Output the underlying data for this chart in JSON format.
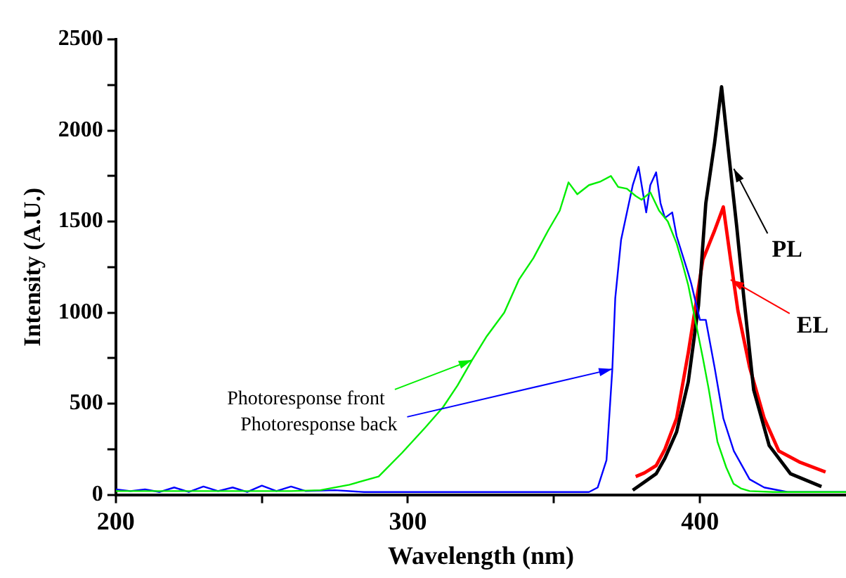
{
  "chart_data": {
    "type": "line",
    "xlabel": "Wavelength (nm)",
    "ylabel": "Intensity (A.U.)",
    "xlim": [
      200,
      450
    ],
    "xticks": [
      200,
      {
        "value": 250,
        "label": null
      },
      300,
      {
        "value": 350,
        "label": null
      },
      400
    ],
    "ylim": [
      0,
      2500
    ],
    "yticks": [
      0,
      {
        "value": 250,
        "label": null
      },
      500,
      {
        "value": 750,
        "label": null
      },
      1000,
      {
        "value": 1250,
        "label": null
      },
      1500,
      {
        "value": 1750,
        "label": null
      },
      2000,
      {
        "value": 2250,
        "label": null
      },
      2500
    ],
    "grid": false,
    "legend": false,
    "marker": "none",
    "line_style": "solid",
    "series": [
      {
        "color": "#00ee00",
        "x": [
          200,
          230,
          260,
          270,
          280,
          290,
          298,
          306,
          312,
          317,
          322,
          327,
          333,
          338,
          343,
          348,
          352,
          355,
          358,
          362,
          366,
          369.5,
          372,
          375,
          378,
          380,
          383,
          386,
          389,
          392,
          394,
          396,
          399,
          401,
          403,
          406,
          409,
          411.5,
          414,
          417,
          425,
          450
        ],
        "values": [
          20,
          20,
          20,
          25,
          55,
          100,
          230,
          370,
          480,
          600,
          740,
          870,
          1000,
          1180,
          1300,
          1450,
          1560,
          1715,
          1650,
          1700,
          1720,
          1750,
          1690,
          1680,
          1640,
          1620,
          1660,
          1560,
          1500,
          1380,
          1270,
          1150,
          910,
          750,
          580,
          290,
          150,
          60,
          35,
          20,
          15,
          15
        ]
      },
      {
        "color": "#0000ff",
        "x": [
          200,
          205,
          210,
          215,
          220,
          225,
          230,
          235,
          240,
          245,
          250,
          255,
          260,
          265,
          275,
          285,
          300,
          330,
          362,
          365,
          368,
          370,
          371,
          373,
          375,
          377,
          379,
          381.6,
          383,
          385,
          386.5,
          388,
          390.5,
          392,
          396,
          397,
          400,
          402,
          405,
          408,
          411.6,
          417,
          422,
          430,
          450
        ],
        "values": [
          30,
          20,
          30,
          15,
          40,
          15,
          45,
          20,
          40,
          15,
          50,
          20,
          45,
          20,
          25,
          15,
          15,
          15,
          15,
          40,
          190,
          690,
          1080,
          1400,
          1550,
          1700,
          1800,
          1550,
          1700,
          1770,
          1600,
          1520,
          1550,
          1420,
          1215,
          1160,
          960,
          960,
          700,
          420,
          240,
          85,
          40,
          15,
          15
        ]
      },
      {
        "color": "#000000",
        "x": [
          377,
          381,
          385,
          388,
          392,
          396,
          399.5,
          402,
          405,
          407.4,
          410,
          412.6,
          415,
          418.4,
          423.7,
          431,
          441.6
        ],
        "values": [
          25,
          70,
          115,
          200,
          345,
          620,
          1040,
          1600,
          1930,
          2240,
          1850,
          1470,
          1085,
          575,
          270,
          115,
          45
        ]
      },
      {
        "color": "#ff0000",
        "x": [
          378,
          381,
          385,
          388,
          392,
          396,
          401,
          405,
          408,
          410.5,
          413,
          417,
          422,
          427,
          434,
          443
        ],
        "values": [
          100,
          120,
          160,
          250,
          420,
          780,
          1290,
          1450,
          1580,
          1290,
          1010,
          700,
          420,
          240,
          180,
          125
        ]
      }
    ],
    "annotations": [
      {
        "text": "PL",
        "x": 411.6,
        "y": 1790
      },
      {
        "text": "EL",
        "x": 410.5,
        "y": 1180
      },
      {
        "text": "Photoresponse front",
        "x": 322,
        "y": 740
      },
      {
        "text": "Photoresponse back",
        "x": 370,
        "y": 690
      }
    ]
  }
}
